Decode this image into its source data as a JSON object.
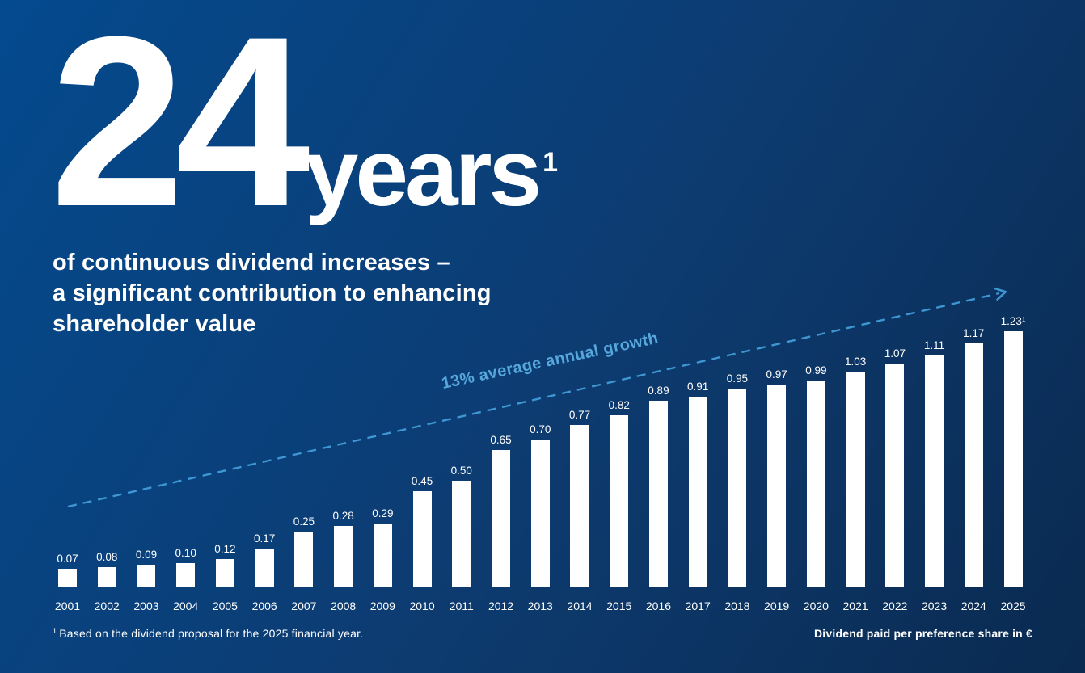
{
  "hero": {
    "big_number": "24",
    "big_unit": "years",
    "superscript": "1",
    "subtitle_lines": [
      "of continuous dividend increases –",
      "a significant contribution to enhancing",
      "shareholder value"
    ]
  },
  "trend": {
    "label": "13% average annual growth"
  },
  "footnote": {
    "marker": "1",
    "text": "Based on the dividend proposal for the 2025 financial year."
  },
  "axis_note": "Dividend paid per preference share in €",
  "colors": {
    "background_top_left": "#044A8E",
    "background_center": "#0D3B70",
    "background_bottom_right": "#0A2A50",
    "bar": "#FFFFFF",
    "text": "#FFFFFF",
    "trend_line": "#3E96D2",
    "trend_text": "#55A7DC"
  },
  "chart_data": {
    "type": "bar",
    "title": "24 years of continuous dividend increases – a significant contribution to enhancing shareholder value",
    "categories": [
      "2001",
      "2002",
      "2003",
      "2004",
      "2005",
      "2006",
      "2007",
      "2008",
      "2009",
      "2010",
      "2011",
      "2012",
      "2013",
      "2014",
      "2015",
      "2016",
      "2017",
      "2018",
      "2019",
      "2020",
      "2021",
      "2022",
      "2023",
      "2024",
      "2025"
    ],
    "values": [
      0.07,
      0.08,
      0.09,
      0.1,
      0.12,
      0.17,
      0.25,
      0.28,
      0.29,
      0.45,
      0.5,
      0.65,
      0.7,
      0.77,
      0.82,
      0.89,
      0.91,
      0.95,
      0.97,
      0.99,
      1.03,
      1.07,
      1.11,
      1.17,
      1.23
    ],
    "value_labels": [
      "0.07",
      "0.08",
      "0.09",
      "0.10",
      "0.12",
      "0.17",
      "0.25",
      "0.28",
      "0.29",
      "0.45",
      "0.50",
      "0.65",
      "0.70",
      "0.77",
      "0.82",
      "0.89",
      "0.91",
      "0.95",
      "0.97",
      "0.99",
      "1.03",
      "1.07",
      "1.11",
      "1.17",
      "1.23¹"
    ],
    "xlabel": "",
    "ylabel": "Dividend paid per preference share in €",
    "ylim": [
      0,
      1.3
    ],
    "grid": false,
    "legend": false,
    "bar_color": "#FFFFFF",
    "trend_annotation": {
      "label": "13% average annual growth",
      "style": "dashed-arrow"
    },
    "footnote": "¹ Based on the dividend proposal for the 2025 financial year."
  }
}
